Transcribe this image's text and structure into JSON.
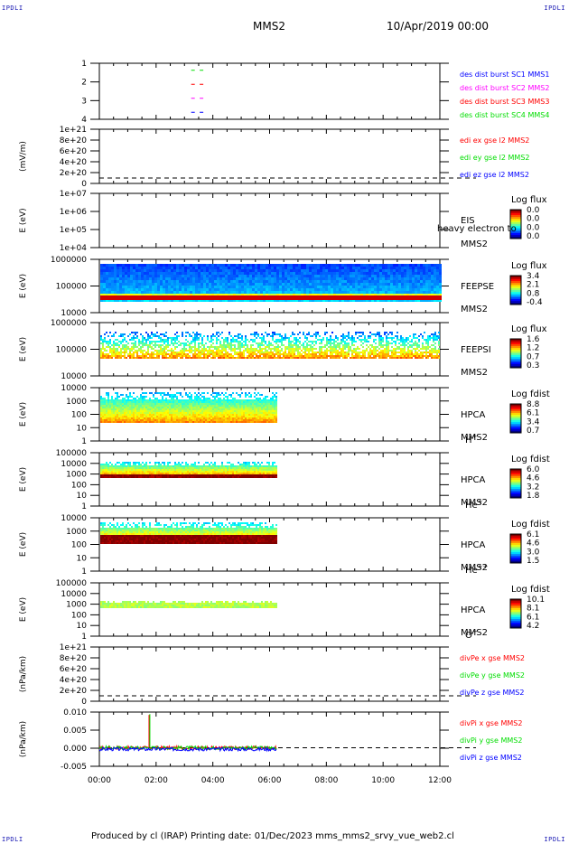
{
  "corners": {
    "top_left": "IPDLI",
    "top_right": "IPDLI",
    "bottom_left": "IPDLI",
    "bottom_right": "IPDLI"
  },
  "header": {
    "spacecraft": "MMS2",
    "datetime": "10/Apr/2019 00:00"
  },
  "footer": {
    "text": "Produced by cl (IRAP)   Printing date: 01/Dec/2023   mms_mms2_srvy_vue_web2.cl"
  },
  "colors": {
    "c1": "#0000ff",
    "c2": "#ff00ff",
    "c3": "#ff0000",
    "c4": "#00dd00",
    "axis": "#000000"
  },
  "chart_data": [
    {
      "type": "scatter",
      "ylim": [
        0.5,
        4.5
      ],
      "yticks": [
        "1",
        "2",
        "3",
        "4"
      ],
      "series": [
        {
          "name": "des dist burst SC1 MMS1",
          "color": "#0000ff",
          "y": 1,
          "x_hours": [
            3.3,
            3.6
          ]
        },
        {
          "name": "des dist burst SC2 MMS2",
          "color": "#ff00ff",
          "y": 2,
          "x_hours": [
            3.3,
            3.6
          ]
        },
        {
          "name": "des dist burst SC3 MMS3",
          "color": "#ff0000",
          "y": 3,
          "x_hours": [
            3.3,
            3.6
          ]
        },
        {
          "name": "des dist burst SC4 MMS4",
          "color": "#00dd00",
          "y": 4,
          "x_hours": [
            3.3,
            3.6
          ]
        }
      ]
    },
    {
      "type": "line",
      "ylabel": "(mV/m)",
      "yticks": [
        "1e+21",
        "8e+20",
        "6e+20",
        "4e+20",
        "2e+20",
        "0"
      ],
      "series": [
        {
          "name": "edi ex gse l2 MMS2",
          "color": "#ff0000"
        },
        {
          "name": "edi ey gse l2 MMS2",
          "color": "#00dd00"
        },
        {
          "name": "edi ez gse l2 MMS2",
          "color": "#0000ff"
        }
      ]
    },
    {
      "type": "heatmap",
      "ylabel": "E (eV)",
      "yticks": [
        "1e+07",
        "1e+06",
        "1e+05",
        "1e+04"
      ],
      "labels": [
        "EIS",
        "MMS2"
      ],
      "overlay_text": "heavy electron to",
      "colorbar": {
        "title": "Log flux",
        "ticks": [
          "0.0",
          "0.0",
          "0.0",
          "0.0"
        ]
      }
    },
    {
      "type": "heatmap",
      "ylabel": "E (eV)",
      "yticks": [
        "1000000",
        "100000",
        "10000"
      ],
      "labels": [
        "FEEPSE",
        "MMS2"
      ],
      "colorbar": {
        "title": "Log flux",
        "ticks": [
          "3.4",
          "2.1",
          "0.8",
          "-0.4"
        ]
      }
    },
    {
      "type": "heatmap",
      "ylabel": "E (eV)",
      "yticks": [
        "1000000",
        "100000",
        "10000"
      ],
      "labels": [
        "FEEPSI",
        "MMS2"
      ],
      "colorbar": {
        "title": "Log flux",
        "ticks": [
          "1.6",
          "1.2",
          "0.7",
          "0.3"
        ]
      }
    },
    {
      "type": "heatmap",
      "ylabel": "E (eV)",
      "yticks": [
        "10000",
        "1000",
        "100",
        "10",
        "1"
      ],
      "labels": [
        "HPCA",
        "MMS2",
        "H"
      ],
      "species_sup": "+",
      "colorbar": {
        "title": "Log fdist",
        "ticks": [
          "8.8",
          "6.1",
          "3.4",
          "0.7"
        ]
      }
    },
    {
      "type": "heatmap",
      "ylabel": "E (eV)",
      "yticks": [
        "100000",
        "10000",
        "1000",
        "100",
        "10",
        "1"
      ],
      "labels": [
        "HPCA",
        "MMS2",
        "He"
      ],
      "species_sup": "+",
      "colorbar": {
        "title": "Log fdist",
        "ticks": [
          "6.0",
          "4.6",
          "3.2",
          "1.8"
        ]
      }
    },
    {
      "type": "heatmap",
      "ylabel": "E (eV)",
      "yticks": [
        "10000",
        "1000",
        "100",
        "10",
        "1"
      ],
      "labels": [
        "HPCA",
        "MMS2",
        "He"
      ],
      "species_sup": "++",
      "colorbar": {
        "title": "Log fdist",
        "ticks": [
          "6.1",
          "4.6",
          "3.0",
          "1.5"
        ]
      }
    },
    {
      "type": "heatmap",
      "ylabel": "E (eV)",
      "yticks": [
        "100000",
        "10000",
        "1000",
        "100",
        "10",
        "1"
      ],
      "labels": [
        "HPCA",
        "MMS2",
        "O"
      ],
      "species_sup": "+",
      "colorbar": {
        "title": "Log fdist",
        "ticks": [
          "10.1",
          "8.1",
          "6.1",
          "4.2"
        ]
      }
    },
    {
      "type": "line",
      "ylabel": "(nPa/km)",
      "yticks": [
        "1e+21",
        "8e+20",
        "6e+20",
        "4e+20",
        "2e+20",
        "0"
      ],
      "series": [
        {
          "name": "divPe x gse MMS2",
          "color": "#ff0000"
        },
        {
          "name": "divPe y gse MMS2",
          "color": "#00dd00"
        },
        {
          "name": "divPe z gse MMS2",
          "color": "#0000ff"
        }
      ]
    },
    {
      "type": "line",
      "ylabel": "(nPa/km)",
      "yticks": [
        "0.010",
        "0.005",
        "0.000",
        "-0.005"
      ],
      "ylim": [
        -0.0065,
        0.0125
      ],
      "series": [
        {
          "name": "divPi x gse MMS2",
          "color": "#ff0000",
          "spike": {
            "x": 1.75,
            "y": 0.0115
          }
        },
        {
          "name": "divPi y gse MMS2",
          "color": "#00dd00",
          "spike": {
            "x": 1.78,
            "y": 0.0118
          }
        },
        {
          "name": "divPi z gse MMS2",
          "color": "#0000ff",
          "baseline": -0.0005
        }
      ],
      "xlabels": [
        "00:00",
        "02:00",
        "04:00",
        "06:00",
        "08:00",
        "10:00",
        "12:00"
      ]
    }
  ]
}
